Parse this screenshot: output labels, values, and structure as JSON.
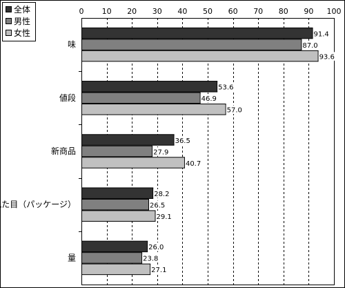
{
  "chart_data": {
    "type": "bar",
    "orientation": "horizontal",
    "categories": [
      "味",
      "値段",
      "新商品",
      "見た目（パッケージ）",
      "量"
    ],
    "series": [
      {
        "name": "全体",
        "values": [
          91.4,
          53.6,
          36.5,
          28.2,
          26.0
        ],
        "labels": [
          "91.4",
          "53.6",
          "36.5",
          "28.2",
          "26.0"
        ],
        "color": "#333333"
      },
      {
        "name": "男性",
        "values": [
          87.0,
          46.9,
          27.9,
          26.5,
          23.8
        ],
        "labels": [
          "87.0",
          "46.9",
          "27.9",
          "26.5",
          "23.8"
        ],
        "color": "#808080"
      },
      {
        "name": "女性",
        "values": [
          93.6,
          57.0,
          40.7,
          29.1,
          27.1
        ],
        "labels": [
          "93.6",
          "57.0",
          "40.7",
          "29.1",
          "27.1"
        ],
        "color": "#c0c0c0"
      }
    ],
    "xlim": [
      0,
      100
    ],
    "x_ticks": [
      "0",
      "10",
      "20",
      "30",
      "40",
      "50",
      "60",
      "70",
      "80",
      "90",
      "100"
    ],
    "x_axis_position": "top",
    "grid": true,
    "legend_position": "top-left",
    "title": "",
    "xlabel": "",
    "ylabel": ""
  }
}
